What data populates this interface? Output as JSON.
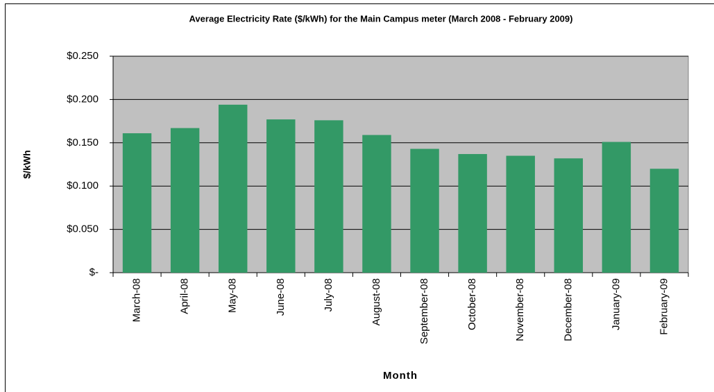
{
  "chart_data": {
    "type": "bar",
    "title": "Average Electricity Rate ($/kWh) for the Main Campus meter (March 2008 - February 2009)",
    "xlabel": "Month",
    "ylabel": "$/kWh",
    "categories": [
      "March-08",
      "April-08",
      "May-08",
      "June-08",
      "July-08",
      "August-08",
      "September-08",
      "October-08",
      "November-08",
      "December-08",
      "January-09",
      "February-09"
    ],
    "values": [
      0.161,
      0.167,
      0.194,
      0.177,
      0.176,
      0.159,
      0.143,
      0.137,
      0.135,
      0.132,
      0.151,
      0.12
    ],
    "color": "#339966",
    "ylim": [
      0,
      0.25
    ],
    "yticks": [
      {
        "value": 0,
        "label": "$-"
      },
      {
        "value": 0.05,
        "label": "$0.050"
      },
      {
        "value": 0.1,
        "label": "$0.100"
      },
      {
        "value": 0.15,
        "label": "$0.150"
      },
      {
        "value": 0.2,
        "label": "$0.200"
      },
      {
        "value": 0.25,
        "label": "$0.250"
      }
    ],
    "grid": true
  }
}
